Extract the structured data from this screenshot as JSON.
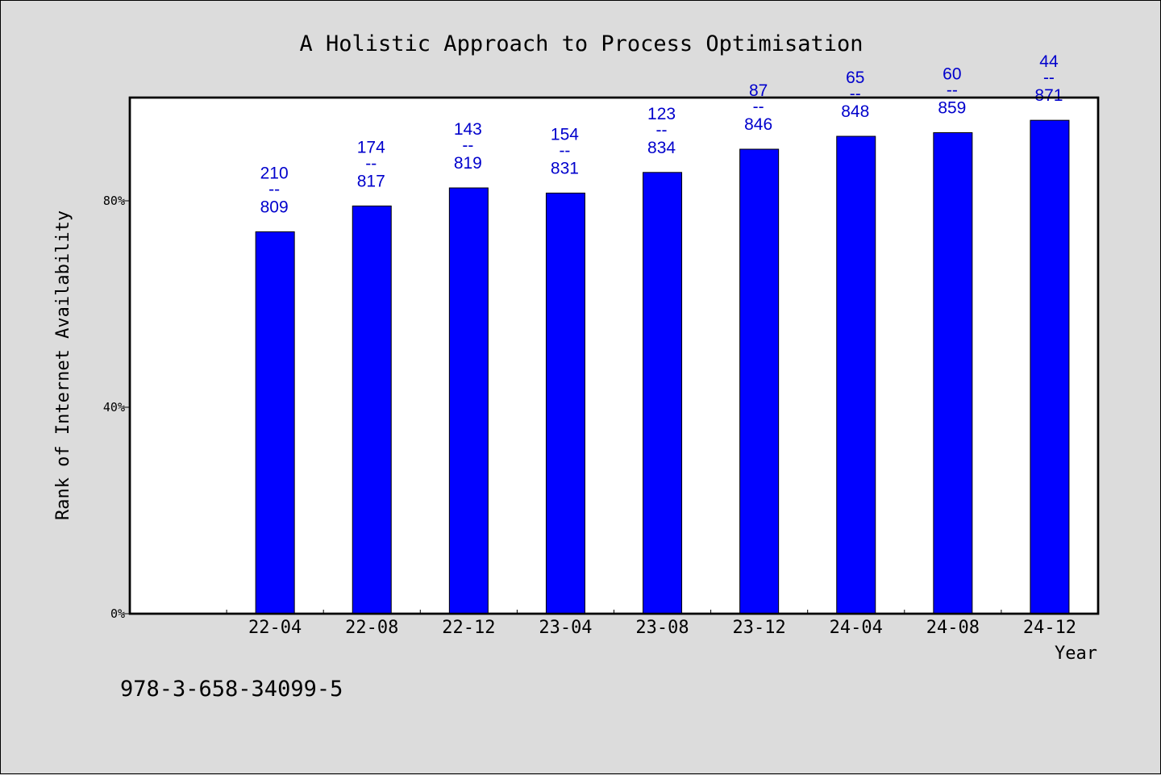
{
  "chart_data": {
    "type": "bar",
    "title": "A Holistic Approach to Process Optimisation",
    "xlabel": "Year",
    "ylabel": "Rank of Internet Availability",
    "ylim": [
      0,
      100
    ],
    "y_ticks": [
      0,
      40,
      80
    ],
    "y_tick_labels": [
      "0%",
      "40%",
      "80%"
    ],
    "categories": [
      "22-04",
      "22-08",
      "22-12",
      "23-04",
      "23-08",
      "23-12",
      "24-04",
      "24-08",
      "24-12"
    ],
    "values": [
      74,
      79,
      82.5,
      81.5,
      85.5,
      90,
      92.5,
      93.2,
      95.6
    ],
    "labels_top": [
      "210",
      "174",
      "143",
      "154",
      "123",
      "87",
      "65",
      "60",
      "44"
    ],
    "labels_sep": "--",
    "labels_bottom": [
      "809",
      "817",
      "819",
      "831",
      "834",
      "846",
      "848",
      "859",
      "871"
    ],
    "bar_color": "#0000ff",
    "label_color": "#0000cc",
    "grid": false
  },
  "footer": {
    "isbn": "978-3-658-34099-5"
  }
}
